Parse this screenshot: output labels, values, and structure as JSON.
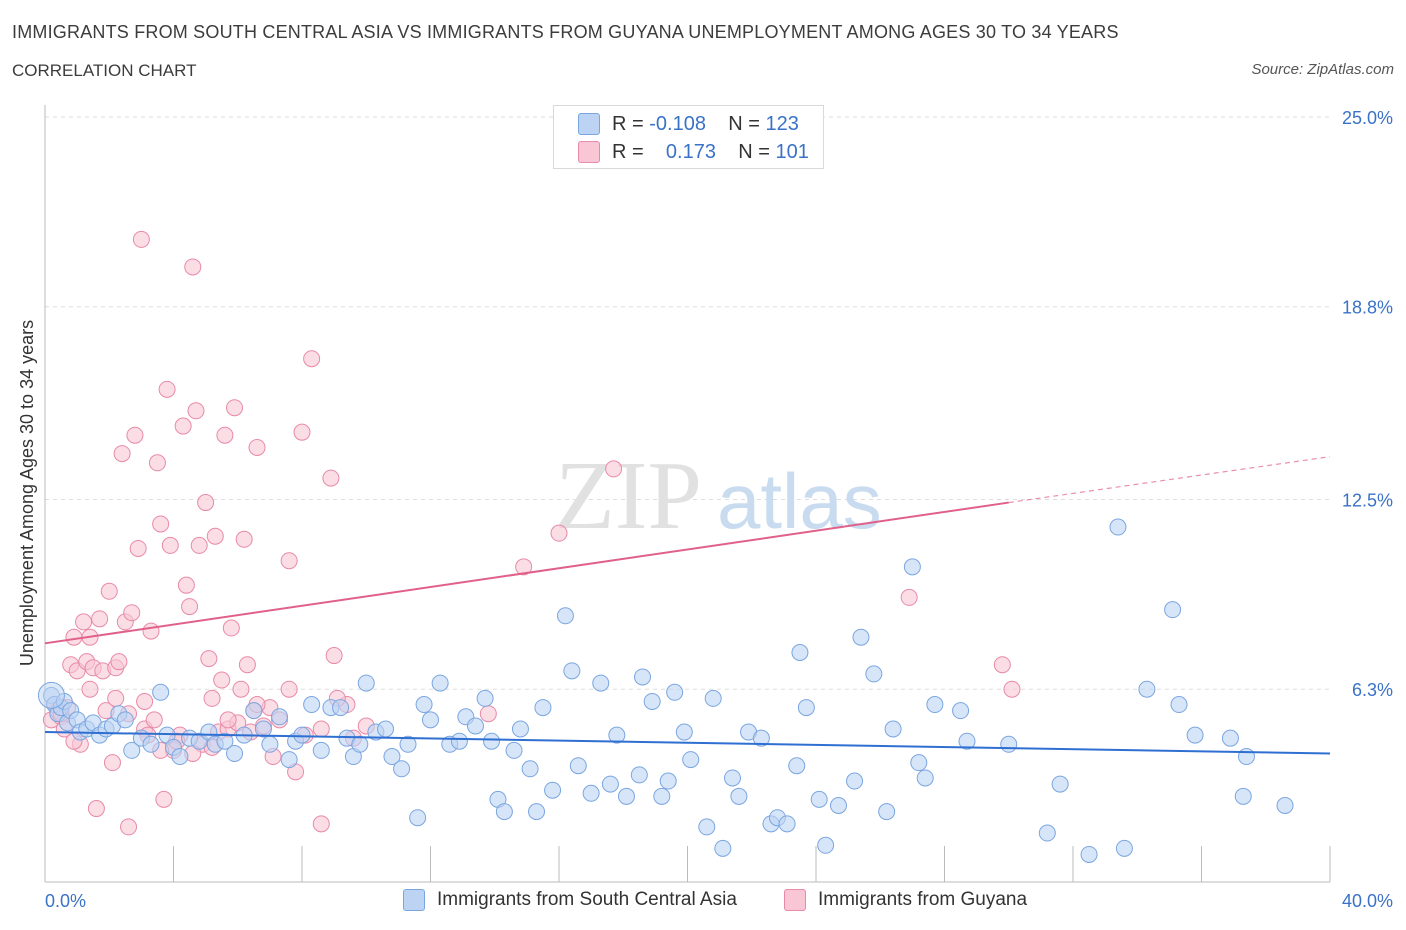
{
  "header": {
    "title": "IMMIGRANTS FROM SOUTH CENTRAL ASIA VS IMMIGRANTS FROM GUYANA UNEMPLOYMENT AMONG AGES 30 TO 34 YEARS",
    "subtitle": "CORRELATION CHART",
    "source": "Source: ZipAtlas.com"
  },
  "watermark": {
    "zip": "ZIP",
    "atlas": "atlas"
  },
  "legend": {
    "rows": [
      {
        "r_label": "R =",
        "r_value": "-0.108",
        "n_label": "N =",
        "n_value": "123"
      },
      {
        "r_label": "R =",
        "r_value": "0.173",
        "n_label": "N =",
        "n_value": "101"
      }
    ]
  },
  "colors": {
    "series1": "#7aa6e0",
    "series1_fill": "#bcd3f3",
    "series1_line": "#2e6fd1",
    "series2": "#e88aa8",
    "series2_fill": "#f8c6d5",
    "series2_line": "#e0608a",
    "axis_label": "#3a72c7",
    "grid": "#dddddd"
  },
  "chart_data": {
    "type": "scatter",
    "xlabel": "",
    "ylabel": "Unemployment Among Ages 30 to 34 years",
    "xlim": [
      0,
      40
    ],
    "ylim": [
      0,
      25
    ],
    "x_tick_labels": [
      "0.0%",
      "40.0%"
    ],
    "y_ticks": [
      6.3,
      12.5,
      18.8,
      25.0
    ],
    "y_tick_labels": [
      "6.3%",
      "12.5%",
      "18.8%",
      "25.0%"
    ],
    "grid": true,
    "legend_position": "top-center",
    "series": [
      {
        "name": "Immigrants from South Central Asia",
        "trend": {
          "x": [
            0,
            40
          ],
          "y": [
            4.9,
            4.2
          ],
          "extrapolated": false
        },
        "points": [
          [
            0.2,
            6.1
          ],
          [
            0.3,
            5.8
          ],
          [
            0.4,
            5.5
          ],
          [
            0.5,
            5.7
          ],
          [
            0.6,
            5.9
          ],
          [
            0.7,
            5.2
          ],
          [
            0.8,
            5.6
          ],
          [
            1.0,
            5.3
          ],
          [
            1.1,
            4.9
          ],
          [
            1.3,
            5.0
          ],
          [
            1.5,
            5.2
          ],
          [
            1.7,
            4.8
          ],
          [
            1.9,
            5.0
          ],
          [
            2.1,
            5.1
          ],
          [
            2.3,
            5.5
          ],
          [
            2.5,
            5.3
          ],
          [
            2.7,
            4.3
          ],
          [
            3.0,
            4.7
          ],
          [
            3.3,
            4.5
          ],
          [
            3.6,
            6.2
          ],
          [
            3.8,
            4.8
          ],
          [
            4.0,
            4.4
          ],
          [
            4.2,
            4.1
          ],
          [
            4.5,
            4.7
          ],
          [
            4.8,
            4.6
          ],
          [
            5.1,
            4.9
          ],
          [
            5.3,
            4.5
          ],
          [
            5.6,
            4.6
          ],
          [
            5.9,
            4.2
          ],
          [
            6.2,
            4.8
          ],
          [
            6.5,
            5.6
          ],
          [
            6.8,
            5.0
          ],
          [
            7.0,
            4.5
          ],
          [
            7.3,
            5.4
          ],
          [
            7.6,
            4.0
          ],
          [
            7.8,
            4.6
          ],
          [
            8.0,
            4.8
          ],
          [
            8.3,
            5.8
          ],
          [
            8.6,
            4.3
          ],
          [
            8.9,
            5.7
          ],
          [
            9.2,
            5.7
          ],
          [
            9.4,
            4.7
          ],
          [
            9.6,
            4.1
          ],
          [
            9.8,
            4.5
          ],
          [
            10.0,
            6.5
          ],
          [
            10.3,
            4.9
          ],
          [
            10.6,
            5.0
          ],
          [
            10.8,
            4.1
          ],
          [
            11.1,
            3.7
          ],
          [
            11.3,
            4.5
          ],
          [
            11.6,
            2.1
          ],
          [
            11.8,
            5.8
          ],
          [
            12.0,
            5.3
          ],
          [
            12.3,
            6.5
          ],
          [
            12.6,
            4.5
          ],
          [
            12.9,
            4.6
          ],
          [
            13.1,
            5.4
          ],
          [
            13.4,
            5.1
          ],
          [
            13.7,
            6.0
          ],
          [
            13.9,
            4.6
          ],
          [
            14.1,
            2.7
          ],
          [
            14.3,
            2.3
          ],
          [
            14.6,
            4.3
          ],
          [
            14.8,
            5.0
          ],
          [
            15.1,
            3.7
          ],
          [
            15.3,
            2.3
          ],
          [
            15.5,
            5.7
          ],
          [
            15.8,
            3.0
          ],
          [
            16.2,
            8.7
          ],
          [
            16.4,
            6.9
          ],
          [
            16.6,
            3.8
          ],
          [
            17.0,
            2.9
          ],
          [
            17.3,
            6.5
          ],
          [
            17.6,
            3.2
          ],
          [
            17.8,
            4.8
          ],
          [
            18.1,
            2.8
          ],
          [
            18.5,
            3.5
          ],
          [
            18.6,
            6.7
          ],
          [
            18.9,
            5.9
          ],
          [
            19.2,
            2.8
          ],
          [
            19.4,
            3.3
          ],
          [
            19.6,
            6.2
          ],
          [
            19.9,
            4.9
          ],
          [
            20.1,
            4.0
          ],
          [
            20.6,
            1.8
          ],
          [
            20.8,
            6.0
          ],
          [
            21.1,
            1.1
          ],
          [
            21.4,
            3.4
          ],
          [
            21.6,
            2.8
          ],
          [
            21.9,
            4.9
          ],
          [
            22.3,
            4.7
          ],
          [
            22.6,
            1.9
          ],
          [
            22.8,
            2.1
          ],
          [
            23.1,
            1.9
          ],
          [
            23.4,
            3.8
          ],
          [
            23.5,
            7.5
          ],
          [
            23.7,
            5.7
          ],
          [
            24.1,
            2.7
          ],
          [
            24.3,
            1.2
          ],
          [
            24.7,
            2.5
          ],
          [
            25.2,
            3.3
          ],
          [
            25.4,
            8.0
          ],
          [
            25.8,
            6.8
          ],
          [
            26.2,
            2.3
          ],
          [
            26.4,
            5.0
          ],
          [
            27.0,
            10.3
          ],
          [
            27.2,
            3.9
          ],
          [
            27.4,
            3.4
          ],
          [
            27.7,
            5.8
          ],
          [
            28.5,
            5.6
          ],
          [
            28.7,
            4.6
          ],
          [
            30.0,
            4.5
          ],
          [
            31.2,
            1.6
          ],
          [
            31.6,
            3.2
          ],
          [
            32.5,
            0.9
          ],
          [
            33.4,
            11.6
          ],
          [
            33.6,
            1.1
          ],
          [
            34.3,
            6.3
          ],
          [
            35.1,
            8.9
          ],
          [
            35.3,
            5.8
          ],
          [
            35.8,
            4.8
          ],
          [
            36.9,
            4.7
          ],
          [
            37.3,
            2.8
          ],
          [
            37.4,
            4.1
          ],
          [
            38.6,
            2.5
          ]
        ]
      },
      {
        "name": "Immigrants from Guyana",
        "trend": {
          "x": [
            0,
            30
          ],
          "y": [
            7.8,
            12.4
          ],
          "extrapolated_to": [
            40,
            13.9
          ]
        },
        "points": [
          [
            0.2,
            5.3
          ],
          [
            0.3,
            5.8
          ],
          [
            0.4,
            5.6
          ],
          [
            0.5,
            5.4
          ],
          [
            0.6,
            5.0
          ],
          [
            0.7,
            5.7
          ],
          [
            0.8,
            7.1
          ],
          [
            0.9,
            8.0
          ],
          [
            1.0,
            6.9
          ],
          [
            1.1,
            4.5
          ],
          [
            1.2,
            8.5
          ],
          [
            1.3,
            7.2
          ],
          [
            1.4,
            6.3
          ],
          [
            1.5,
            7.0
          ],
          [
            1.6,
            2.4
          ],
          [
            1.7,
            8.6
          ],
          [
            1.8,
            6.9
          ],
          [
            1.9,
            5.6
          ],
          [
            2.0,
            9.5
          ],
          [
            2.1,
            3.9
          ],
          [
            2.2,
            7.0
          ],
          [
            2.3,
            7.2
          ],
          [
            2.4,
            14.0
          ],
          [
            2.5,
            8.5
          ],
          [
            2.6,
            1.8
          ],
          [
            2.7,
            8.8
          ],
          [
            2.8,
            14.6
          ],
          [
            2.9,
            10.9
          ],
          [
            3.0,
            21.0
          ],
          [
            3.1,
            5.0
          ],
          [
            3.2,
            4.8
          ],
          [
            3.3,
            8.2
          ],
          [
            3.4,
            5.3
          ],
          [
            3.5,
            13.7
          ],
          [
            3.6,
            11.7
          ],
          [
            3.7,
            2.7
          ],
          [
            3.8,
            16.1
          ],
          [
            3.9,
            11.0
          ],
          [
            4.0,
            4.3
          ],
          [
            4.2,
            4.8
          ],
          [
            4.3,
            14.9
          ],
          [
            4.4,
            9.7
          ],
          [
            4.5,
            9.0
          ],
          [
            4.6,
            20.1
          ],
          [
            4.7,
            15.4
          ],
          [
            4.8,
            11.0
          ],
          [
            4.9,
            4.5
          ],
          [
            5.0,
            12.4
          ],
          [
            5.1,
            7.3
          ],
          [
            5.2,
            6.0
          ],
          [
            5.3,
            11.3
          ],
          [
            5.4,
            4.9
          ],
          [
            5.5,
            6.6
          ],
          [
            5.6,
            14.6
          ],
          [
            5.7,
            5.0
          ],
          [
            5.8,
            8.3
          ],
          [
            5.9,
            15.5
          ],
          [
            6.0,
            5.2
          ],
          [
            6.2,
            11.2
          ],
          [
            6.3,
            7.1
          ],
          [
            6.4,
            4.9
          ],
          [
            6.5,
            5.6
          ],
          [
            6.6,
            14.2
          ],
          [
            6.8,
            5.1
          ],
          [
            7.0,
            5.7
          ],
          [
            7.3,
            5.3
          ],
          [
            7.6,
            10.5
          ],
          [
            7.8,
            3.6
          ],
          [
            8.0,
            14.7
          ],
          [
            8.3,
            17.1
          ],
          [
            8.6,
            1.9
          ],
          [
            8.9,
            13.2
          ],
          [
            9.0,
            7.4
          ],
          [
            9.4,
            5.8
          ],
          [
            9.6,
            4.7
          ],
          [
            10.0,
            5.1
          ],
          [
            13.8,
            5.5
          ],
          [
            14.9,
            10.3
          ],
          [
            16.0,
            11.4
          ],
          [
            17.7,
            13.5
          ],
          [
            26.9,
            9.3
          ],
          [
            29.8,
            7.1
          ],
          [
            30.1,
            6.3
          ],
          [
            0.5,
            5.5
          ],
          [
            0.9,
            4.6
          ],
          [
            1.4,
            8.0
          ],
          [
            2.2,
            6.0
          ],
          [
            2.6,
            5.5
          ],
          [
            3.1,
            5.9
          ],
          [
            3.6,
            4.3
          ],
          [
            4.1,
            4.6
          ],
          [
            4.6,
            4.2
          ],
          [
            5.2,
            4.4
          ],
          [
            5.7,
            5.3
          ],
          [
            6.1,
            6.3
          ],
          [
            6.6,
            5.8
          ],
          [
            7.1,
            4.1
          ],
          [
            7.6,
            6.3
          ],
          [
            8.1,
            4.8
          ],
          [
            8.6,
            5.0
          ],
          [
            9.1,
            6.0
          ]
        ]
      }
    ]
  },
  "bottom_legend": {
    "series1_label": "Immigrants from South Central Asia",
    "series2_label": "Immigrants from Guyana"
  }
}
